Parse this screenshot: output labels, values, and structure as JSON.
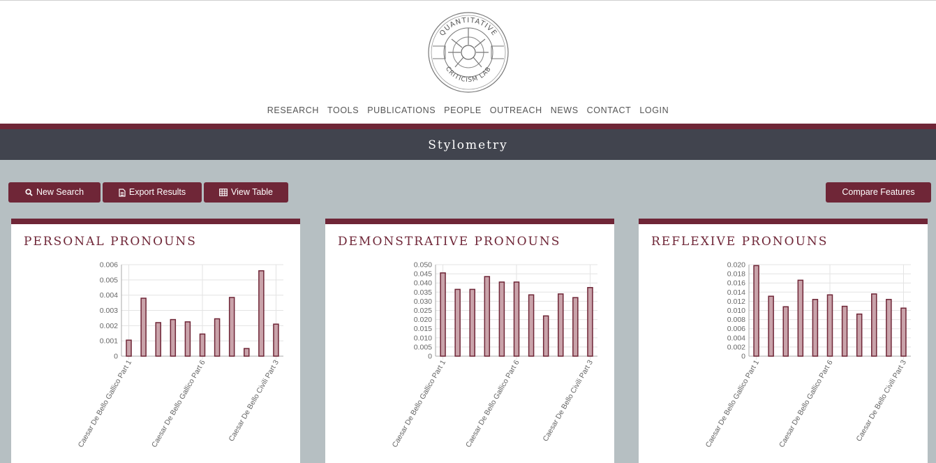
{
  "nav": {
    "items": [
      "RESEARCH",
      "TOOLS",
      "PUBLICATIONS",
      "PEOPLE",
      "OUTREACH",
      "NEWS",
      "CONTACT",
      "LOGIN"
    ]
  },
  "logo": {
    "top_text": "QUANTITATIVE",
    "bottom_text": "CRITICISM LAB"
  },
  "page": {
    "title": "Stylometry"
  },
  "toolbar": {
    "new_search": "New Search",
    "export_results": "Export Results",
    "view_table": "View Table",
    "compare_features": "Compare Features"
  },
  "colors": {
    "maroon": "#6f2637",
    "bar_fill": "#c9a3aa",
    "bar_stroke": "#6f2637"
  },
  "chart_data": [
    {
      "type": "bar",
      "title": "PERSONAL PRONOUNS",
      "categories": [
        "",
        "",
        "",
        "",
        "",
        "",
        "",
        "",
        "",
        "",
        ""
      ],
      "category_labels": [
        {
          "index": 0,
          "text": "Caesar De Bello Gallico Part 1"
        },
        {
          "index": 5,
          "text": "Caesar De Bello Gallico Part 6"
        },
        {
          "index": 10,
          "text": "Caesar De Bello Civili Part 3"
        }
      ],
      "values": [
        0.00105,
        0.0038,
        0.0022,
        0.0024,
        0.00225,
        0.00145,
        0.00245,
        0.00385,
        0.0005,
        0.0056,
        0.0021
      ],
      "ylim": [
        0,
        0.006
      ],
      "yticks": [
        "0",
        "0.001",
        "0.002",
        "0.003",
        "0.004",
        "0.005",
        "0.006"
      ],
      "grid": true
    },
    {
      "type": "bar",
      "title": "DEMONSTRATIVE PRONOUNS",
      "categories": [
        "",
        "",
        "",
        "",
        "",
        "",
        "",
        "",
        "",
        "",
        ""
      ],
      "category_labels": [
        {
          "index": 0,
          "text": "Caesar De Bello Gallico Part 1"
        },
        {
          "index": 5,
          "text": "Caesar De Bello Gallico Part 6"
        },
        {
          "index": 10,
          "text": "Caesar De Bello Civili Part 3"
        }
      ],
      "values": [
        0.0455,
        0.0365,
        0.0365,
        0.0435,
        0.0405,
        0.0405,
        0.0335,
        0.022,
        0.034,
        0.032,
        0.0375
      ],
      "ylim": [
        0,
        0.05
      ],
      "yticks": [
        "0",
        "0.005",
        "0.010",
        "0.015",
        "0.020",
        "0.025",
        "0.030",
        "0.035",
        "0.040",
        "0.045",
        "0.050"
      ],
      "grid": true
    },
    {
      "type": "bar",
      "title": "REFLEXIVE PRONOUNS",
      "categories": [
        "",
        "",
        "",
        "",
        "",
        "",
        "",
        "",
        "",
        "",
        ""
      ],
      "category_labels": [
        {
          "index": 0,
          "text": "Caesar De Bello Gallico Part 1"
        },
        {
          "index": 5,
          "text": "Caesar De Bello Gallico Part 6"
        },
        {
          "index": 10,
          "text": "Caesar De Bello Civili Part 3"
        }
      ],
      "values": [
        0.0198,
        0.0131,
        0.0108,
        0.0166,
        0.0124,
        0.0134,
        0.0109,
        0.0092,
        0.0136,
        0.0124,
        0.0105
      ],
      "ylim": [
        0,
        0.02
      ],
      "yticks": [
        "0",
        "0.002",
        "0.004",
        "0.006",
        "0.008",
        "0.010",
        "0.012",
        "0.014",
        "0.016",
        "0.018",
        "0.020"
      ],
      "grid": true
    }
  ]
}
